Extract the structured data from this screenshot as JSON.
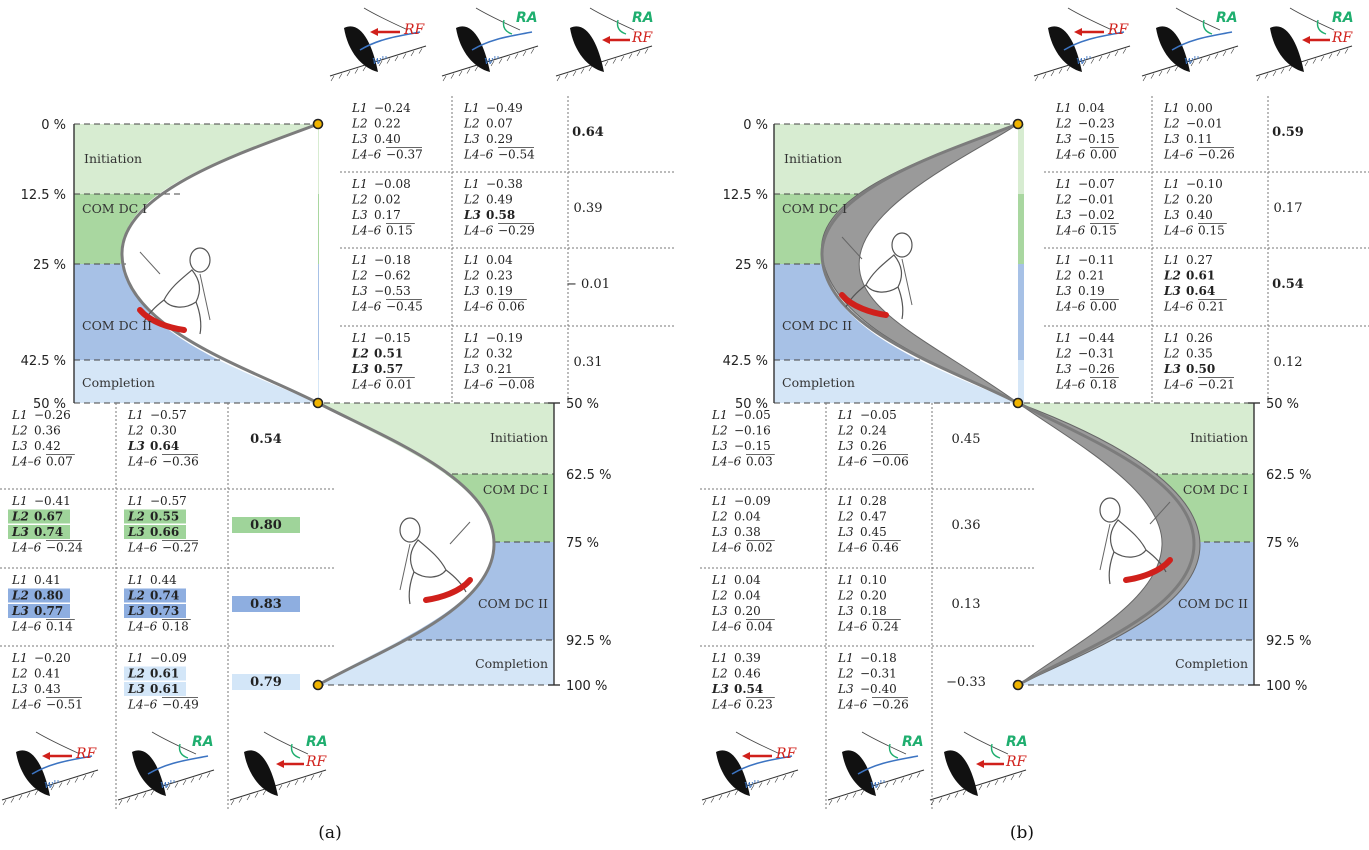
{
  "panels": [
    {
      "id": "a",
      "label": "(a)",
      "percent_labels": {
        "first_turn": [
          "0 %",
          "12.5 %",
          "25 %",
          "42.5 %",
          "50 %"
        ],
        "second_turn": [
          "50 %",
          "62.5 %",
          "75 %",
          "92.5 %",
          "100 %"
        ]
      },
      "phases": [
        "Initiation",
        "COM DC I",
        "COM DC II",
        "Completion"
      ],
      "icons": {
        "rf": "RF",
        "ra": "RA",
        "w": "w''"
      },
      "top_rows": [
        {
          "c1": [
            [
              "L1",
              "−0.24"
            ],
            [
              "L2",
              "0.22"
            ],
            [
              "L3",
              "0.40"
            ],
            [
              "L4–6",
              "−0.37"
            ]
          ],
          "c2": [
            [
              "L1",
              "−0.49"
            ],
            [
              "L2",
              "0.07"
            ],
            [
              "L3",
              "0.29"
            ],
            [
              "L4–6",
              "−0.54"
            ]
          ],
          "bold1": [],
          "bold2": [],
          "corr": "0.64",
          "corr_bold": true,
          "hl": ""
        },
        {
          "c1": [
            [
              "L1",
              "−0.08"
            ],
            [
              "L2",
              "0.02"
            ],
            [
              "L3",
              "0.17"
            ],
            [
              "L4–6",
              "0.15"
            ]
          ],
          "c2": [
            [
              "L1",
              "−0.38"
            ],
            [
              "L2",
              "0.49"
            ],
            [
              "L3",
              "0.58"
            ],
            [
              "L4–6",
              "−0.29"
            ]
          ],
          "bold1": [],
          "bold2": [
            2
          ],
          "corr": "0.39",
          "corr_bold": false,
          "hl": ""
        },
        {
          "c1": [
            [
              "L1",
              "−0.18"
            ],
            [
              "L2",
              "−0.62"
            ],
            [
              "L3",
              "−0.53"
            ],
            [
              "L4–6",
              "−0.45"
            ]
          ],
          "c2": [
            [
              "L1",
              "0.04"
            ],
            [
              "L2",
              "0.23"
            ],
            [
              "L3",
              "0.19"
            ],
            [
              "L4–6",
              "0.06"
            ]
          ],
          "bold1": [],
          "bold2": [],
          "corr": "− 0.01",
          "corr_bold": false,
          "hl": ""
        },
        {
          "c1": [
            [
              "L1",
              "−0.15"
            ],
            [
              "L2",
              "0.51"
            ],
            [
              "L3",
              "0.57"
            ],
            [
              "L4–6",
              "0.01"
            ]
          ],
          "c2": [
            [
              "L1",
              "−0.19"
            ],
            [
              "L2",
              "0.32"
            ],
            [
              "L3",
              "0.21"
            ],
            [
              "L4–6",
              "−0.08"
            ]
          ],
          "bold1": [
            1,
            2
          ],
          "bold2": [],
          "corr": "0.31",
          "corr_bold": false,
          "hl": ""
        }
      ],
      "bottom_rows": [
        {
          "c1": [
            [
              "L1",
              "−0.26"
            ],
            [
              "L2",
              "0.36"
            ],
            [
              "L3",
              "0.42"
            ],
            [
              "L4–6",
              "0.07"
            ]
          ],
          "c2": [
            [
              "L1",
              "−0.57"
            ],
            [
              "L2",
              "0.30"
            ],
            [
              "L3",
              "0.64"
            ],
            [
              "L4–6",
              "−0.36"
            ]
          ],
          "bold1": [],
          "bold2": [
            2
          ],
          "corr": "0.54",
          "corr_bold": true,
          "hl": ""
        },
        {
          "c1": [
            [
              "L1",
              "−0.41"
            ],
            [
              "L2",
              "0.67"
            ],
            [
              "L3",
              "0.74"
            ],
            [
              "L4–6",
              "−0.24"
            ]
          ],
          "c2": [
            [
              "L1",
              "−0.57"
            ],
            [
              "L2",
              "0.55"
            ],
            [
              "L3",
              "0.66"
            ],
            [
              "L4–6",
              "−0.27"
            ]
          ],
          "bold1": [
            1,
            2
          ],
          "bold2": [
            1,
            2
          ],
          "corr": "0.80",
          "corr_bold": true,
          "hl": "#9fd49a"
        },
        {
          "c1": [
            [
              "L1",
              "0.41"
            ],
            [
              "L2",
              "0.80"
            ],
            [
              "L3",
              "0.77"
            ],
            [
              "L4–6",
              "0.14"
            ]
          ],
          "c2": [
            [
              "L1",
              "0.44"
            ],
            [
              "L2",
              "0.74"
            ],
            [
              "L3",
              "0.73"
            ],
            [
              "L4–6",
              "0.18"
            ]
          ],
          "bold1": [
            1,
            2
          ],
          "bold2": [
            1,
            2
          ],
          "corr": "0.83",
          "corr_bold": true,
          "hl": "#8eaee0"
        },
        {
          "c1": [
            [
              "L1",
              "−0.20"
            ],
            [
              "L2",
              "0.41"
            ],
            [
              "L3",
              "0.43"
            ],
            [
              "L4–6",
              "−0.51"
            ]
          ],
          "c2": [
            [
              "L1",
              "−0.09"
            ],
            [
              "L2",
              "0.61"
            ],
            [
              "L3",
              "0.61"
            ],
            [
              "L4–6",
              "−0.49"
            ]
          ],
          "bold1": [],
          "bold2": [
            1,
            2
          ],
          "corr": "0.79",
          "corr_bold": true,
          "hl": "#d3e6f8"
        }
      ]
    },
    {
      "id": "b",
      "label": "(b)",
      "percent_labels": {
        "first_turn": [
          "0 %",
          "12.5 %",
          "25 %",
          "42.5 %",
          "50 %"
        ],
        "second_turn": [
          "50 %",
          "62.5 %",
          "75 %",
          "92.5 %",
          "100 %"
        ]
      },
      "phases": [
        "Initiation",
        "COM DC I",
        "COM DC II",
        "Completion"
      ],
      "icons": {
        "rf": "RF",
        "ra": "RA",
        "w": "w''"
      },
      "top_rows": [
        {
          "c1": [
            [
              "L1",
              "0.04"
            ],
            [
              "L2",
              "−0.23"
            ],
            [
              "L3",
              "−0.15"
            ],
            [
              "L4–6",
              "0.00"
            ]
          ],
          "c2": [
            [
              "L1",
              "0.00"
            ],
            [
              "L2",
              "−0.01"
            ],
            [
              "L3",
              "0.11"
            ],
            [
              "L4–6",
              "−0.26"
            ]
          ],
          "bold1": [],
          "bold2": [],
          "corr": "0.59",
          "corr_bold": true,
          "hl": ""
        },
        {
          "c1": [
            [
              "L1",
              "−0.07"
            ],
            [
              "L2",
              "−0.01"
            ],
            [
              "L3",
              "−0.02"
            ],
            [
              "L4–6",
              "0.15"
            ]
          ],
          "c2": [
            [
              "L1",
              "−0.10"
            ],
            [
              "L2",
              "0.20"
            ],
            [
              "L3",
              "0.40"
            ],
            [
              "L4–6",
              "0.15"
            ]
          ],
          "bold1": [],
          "bold2": [],
          "corr": "0.17",
          "corr_bold": false,
          "hl": ""
        },
        {
          "c1": [
            [
              "L1",
              "−0.11"
            ],
            [
              "L2",
              "0.21"
            ],
            [
              "L3",
              "0.19"
            ],
            [
              "L4–6",
              "0.00"
            ]
          ],
          "c2": [
            [
              "L1",
              "0.27"
            ],
            [
              "L2",
              "0.61"
            ],
            [
              "L3",
              "0.64"
            ],
            [
              "L4–6",
              "0.21"
            ]
          ],
          "bold1": [],
          "bold2": [
            1,
            2
          ],
          "corr": "0.54",
          "corr_bold": true,
          "hl": ""
        },
        {
          "c1": [
            [
              "L1",
              "−0.44"
            ],
            [
              "L2",
              "−0.31"
            ],
            [
              "L3",
              "−0.26"
            ],
            [
              "L4–6",
              "0.18"
            ]
          ],
          "c2": [
            [
              "L1",
              "0.26"
            ],
            [
              "L2",
              "0.35"
            ],
            [
              "L3",
              "0.50"
            ],
            [
              "L4–6",
              "−0.21"
            ]
          ],
          "bold1": [],
          "bold2": [
            2
          ],
          "corr": "0.12",
          "corr_bold": false,
          "hl": ""
        }
      ],
      "bottom_rows": [
        {
          "c1": [
            [
              "L1",
              "−0.05"
            ],
            [
              "L2",
              "−0.16"
            ],
            [
              "L3",
              "−0.15"
            ],
            [
              "L4–6",
              "0.03"
            ]
          ],
          "c2": [
            [
              "L1",
              "−0.05"
            ],
            [
              "L2",
              "0.24"
            ],
            [
              "L3",
              "0.26"
            ],
            [
              "L4–6",
              "−0.06"
            ]
          ],
          "bold1": [],
          "bold2": [],
          "corr": "0.45",
          "corr_bold": false,
          "hl": ""
        },
        {
          "c1": [
            [
              "L1",
              "−0.09"
            ],
            [
              "L2",
              "0.04"
            ],
            [
              "L3",
              "0.38"
            ],
            [
              "L4–6",
              "0.02"
            ]
          ],
          "c2": [
            [
              "L1",
              "0.28"
            ],
            [
              "L2",
              "0.47"
            ],
            [
              "L3",
              "0.45"
            ],
            [
              "L4–6",
              "0.46"
            ]
          ],
          "bold1": [],
          "bold2": [],
          "corr": "0.36",
          "corr_bold": false,
          "hl": ""
        },
        {
          "c1": [
            [
              "L1",
              "0.04"
            ],
            [
              "L2",
              "0.04"
            ],
            [
              "L3",
              "0.20"
            ],
            [
              "L4–6",
              "0.04"
            ]
          ],
          "c2": [
            [
              "L1",
              "0.10"
            ],
            [
              "L2",
              "0.20"
            ],
            [
              "L3",
              "0.18"
            ],
            [
              "L4–6",
              "0.24"
            ]
          ],
          "bold1": [],
          "bold2": [],
          "corr": "0.13",
          "corr_bold": false,
          "hl": ""
        },
        {
          "c1": [
            [
              "L1",
              "0.39"
            ],
            [
              "L2",
              "0.46"
            ],
            [
              "L3",
              "0.54"
            ],
            [
              "L4–6",
              "0.23"
            ]
          ],
          "c2": [
            [
              "L1",
              "−0.18"
            ],
            [
              "L2",
              "−0.31"
            ],
            [
              "L3",
              "−0.40"
            ],
            [
              "L4–6",
              "−0.26"
            ]
          ],
          "bold1": [
            2
          ],
          "bold2": [],
          "corr": "−0.33",
          "corr_bold": false,
          "hl": ""
        }
      ]
    }
  ]
}
